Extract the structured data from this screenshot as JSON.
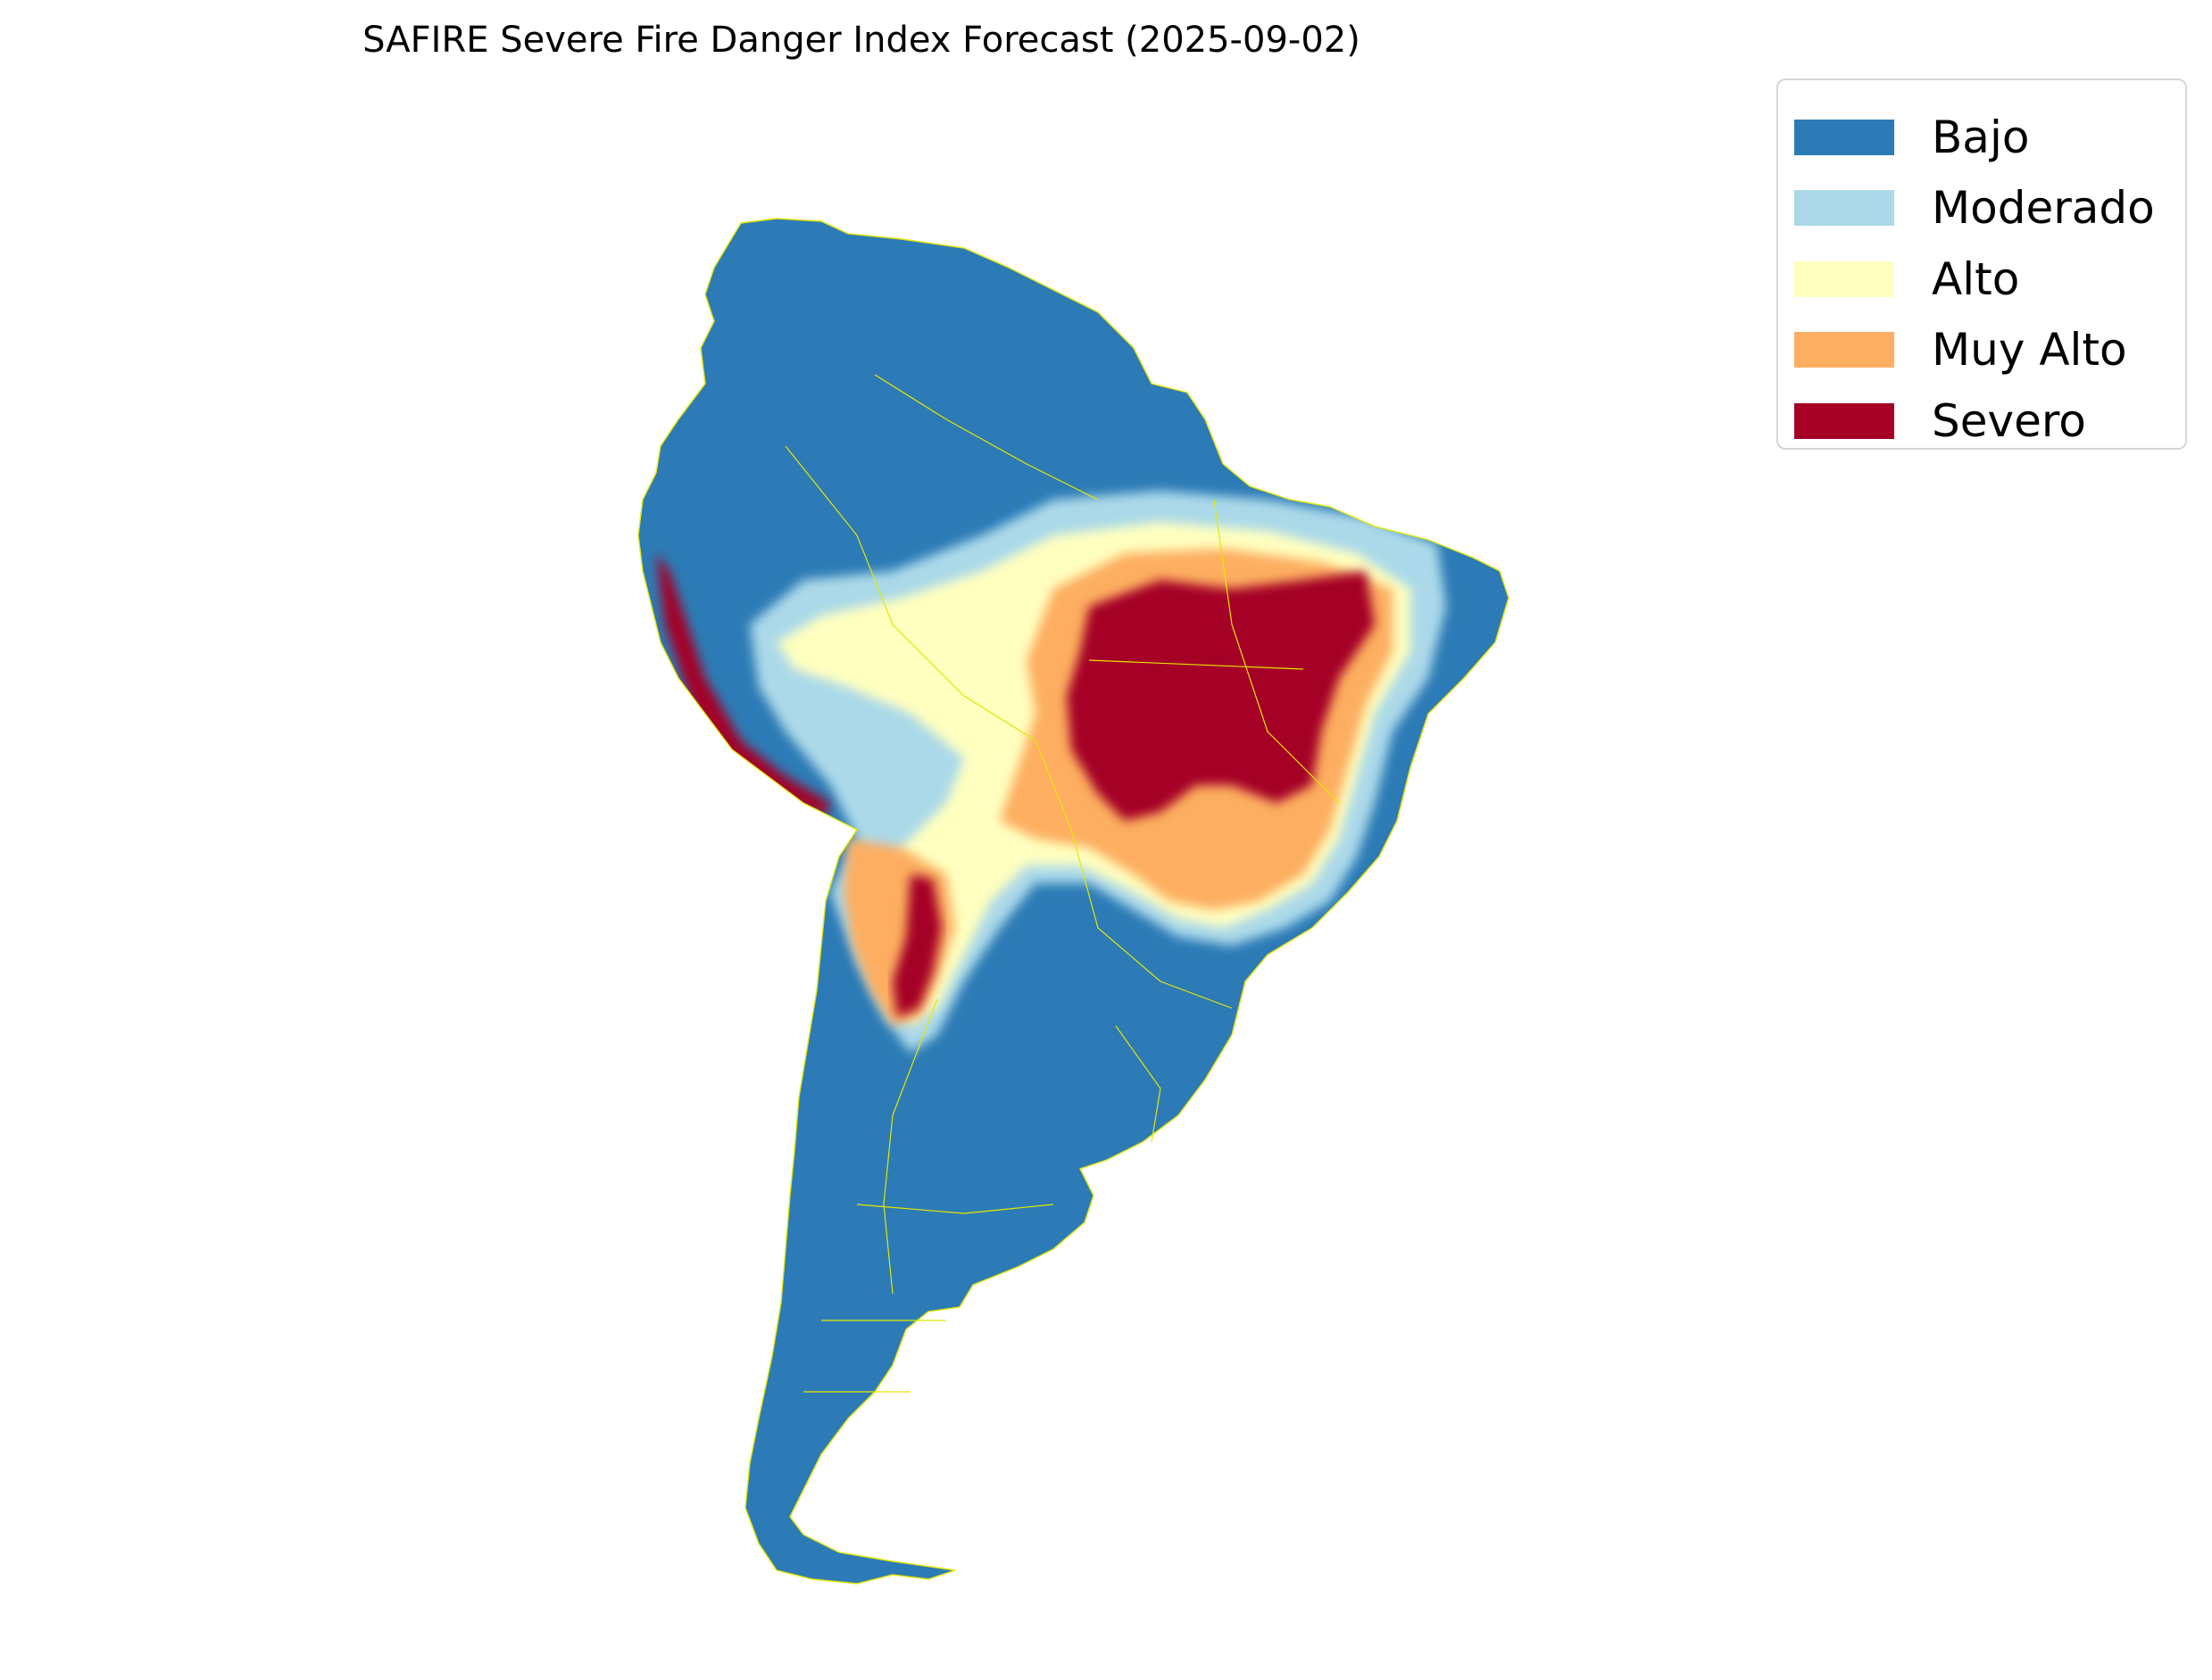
{
  "title": "SAFIRE Severe Fire Danger Index Forecast (2025-09-02)",
  "legend": [
    {
      "label": "Bajo",
      "color": "#2c7bb6"
    },
    {
      "label": "Moderado",
      "color": "#abd9e9"
    },
    {
      "label": "Alto",
      "color": "#ffffbf"
    },
    {
      "label": "Muy Alto",
      "color": "#fdae61"
    },
    {
      "label": "Severo",
      "color": "#a50026"
    }
  ],
  "border_color": "#e6e600"
}
